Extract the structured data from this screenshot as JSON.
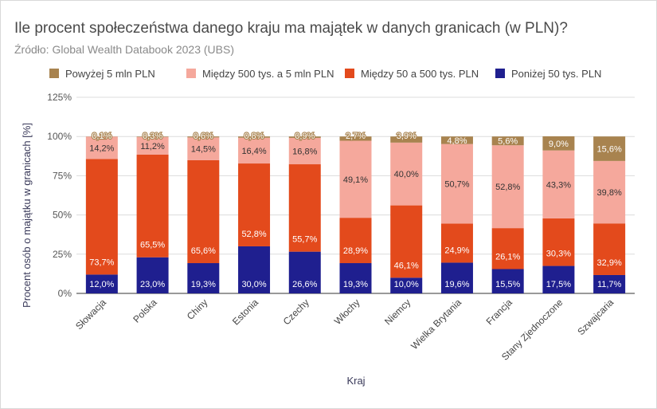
{
  "chart_data": {
    "type": "bar",
    "stacked": true,
    "title": "Ile procent społeczeństwa danego kraju ma majątek w danych granicach (w PLN)?",
    "subtitle": "Źródło: Global Wealth Databook 2023 (UBS)",
    "xlabel": "Kraj",
    "ylabel": "Procent osób o majątku w granicach [%]",
    "ylim": [
      0,
      125
    ],
    "yticks": [
      "0%",
      "25%",
      "50%",
      "75%",
      "100%",
      "125%"
    ],
    "grid": true,
    "legend_position": "top",
    "categories": [
      "Słowacja",
      "Polska",
      "Chiny",
      "Estonia",
      "Czechy",
      "Włochy",
      "Niemcy",
      "Wielka Brytania",
      "Francja",
      "Stany Zjednoczone",
      "Szwajcaria"
    ],
    "series": [
      {
        "name": "Poniżej 50 tys. PLN",
        "color": "#1f1f8f",
        "label_color": "#ffffff",
        "values": [
          12.0,
          23.0,
          19.3,
          30.0,
          26.6,
          19.3,
          10.0,
          19.6,
          15.5,
          17.5,
          11.7
        ],
        "labels": [
          "12,0%",
          "23,0%",
          "19,3%",
          "30,0%",
          "26,6%",
          "19,3%",
          "10,0%",
          "19,6%",
          "15,5%",
          "17,5%",
          "11,7%"
        ]
      },
      {
        "name": "Między 50 a 500 tys. PLN",
        "color": "#e34a1c",
        "label_color": "#ffffff",
        "values": [
          73.7,
          65.5,
          65.6,
          52.8,
          55.7,
          28.9,
          46.1,
          24.9,
          26.1,
          30.3,
          32.9
        ],
        "labels": [
          "73,7%",
          "65,5%",
          "65,6%",
          "52,8%",
          "55,7%",
          "28,9%",
          "46,1%",
          "24,9%",
          "26,1%",
          "30,3%",
          "32,9%"
        ]
      },
      {
        "name": "Między 500 tys. a 5 mln PLN",
        "color": "#f5a89c",
        "label_color": "#333333",
        "values": [
          14.2,
          11.2,
          14.5,
          16.4,
          16.8,
          49.1,
          40.0,
          50.7,
          52.8,
          43.3,
          39.8
        ],
        "labels": [
          "14,2%",
          "11,2%",
          "14,5%",
          "16,4%",
          "16,8%",
          "49,1%",
          "40,0%",
          "50,7%",
          "52,8%",
          "43,3%",
          "39,8%"
        ]
      },
      {
        "name": "Powyżej 5 mln PLN",
        "color": "#a8834f",
        "label_color": "#ffffff",
        "values": [
          0.1,
          0.3,
          0.6,
          0.8,
          0.9,
          2.7,
          3.9,
          4.8,
          5.6,
          9.0,
          15.6
        ],
        "labels": [
          "0,1%",
          "0,3%",
          "0,6%",
          "0,8%",
          "0,9%",
          "2,7%",
          "3,9%",
          "4,8%",
          "5,6%",
          "9,0%",
          "15,6%"
        ]
      }
    ],
    "legend_order": [
      "Powyżej 5 mln PLN",
      "Między 500 tys. a 5 mln PLN",
      "Między 50 a 500 tys. PLN",
      "Poniżej 50 tys. PLN"
    ]
  }
}
